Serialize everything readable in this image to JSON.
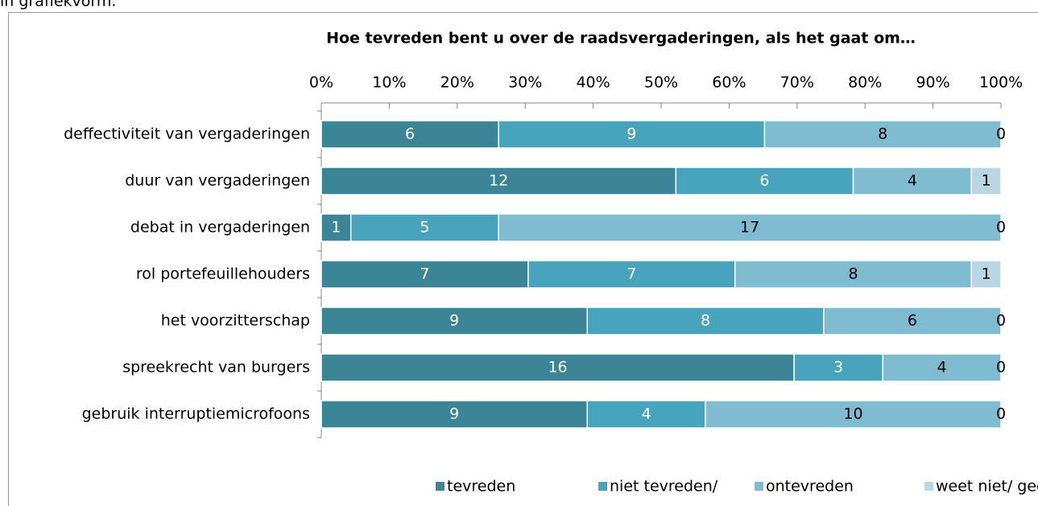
{
  "chart_data": {
    "type": "bar",
    "orientation": "horizontal",
    "percent_stacked": true,
    "page_caption": "in grafiekvorm.",
    "title": "Hoe tevreden bent u over de raadsvergaderingen, als het gaat om…",
    "categories": [
      "deffectiviteit van vergaderingen",
      "duur van vergaderingen",
      "debat in vergaderingen",
      "rol portefeuillehouders",
      "het voorzitterschap",
      "spreekrecht van burgers",
      "gebruik interruptiemicrofoons"
    ],
    "series": [
      {
        "name": "tevreden",
        "color": "#3b8596",
        "label_color": "#ffffff",
        "values": [
          6,
          12,
          1,
          7,
          9,
          16,
          9
        ]
      },
      {
        "name": "niet tevreden/",
        "color": "#48a4bc",
        "label_color": "#ffffff",
        "values": [
          9,
          6,
          5,
          7,
          8,
          3,
          4
        ]
      },
      {
        "name": "ontevreden",
        "color": "#80bcd1",
        "label_color": "#000000",
        "values": [
          8,
          4,
          17,
          8,
          6,
          4,
          10
        ]
      },
      {
        "name": "weet niet/ geen mening",
        "color": "#b8d6e3",
        "label_color": "#000000",
        "values": [
          0,
          1,
          0,
          1,
          0,
          0,
          0
        ]
      }
    ],
    "xlim": [
      0,
      100
    ],
    "xticks": [
      {
        "value": 0,
        "label": "0%"
      },
      {
        "value": 10,
        "label": "10%"
      },
      {
        "value": 20,
        "label": "20%"
      },
      {
        "value": 30,
        "label": "30%"
      },
      {
        "value": 40,
        "label": "40%"
      },
      {
        "value": 50,
        "label": "50%"
      },
      {
        "value": 60,
        "label": "60%"
      },
      {
        "value": 70,
        "label": "70%"
      },
      {
        "value": 80,
        "label": "80%"
      },
      {
        "value": 90,
        "label": "90%"
      },
      {
        "value": 100,
        "label": "100%"
      }
    ],
    "legend": "bottom"
  }
}
